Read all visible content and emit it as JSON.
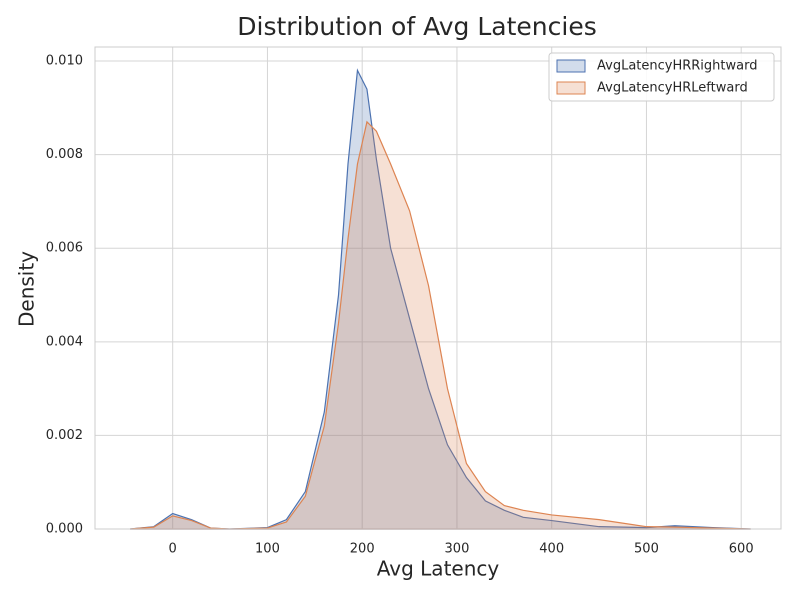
{
  "chart_data": {
    "type": "kde",
    "title": "Distribution of Avg Latencies",
    "xlabel": "Avg Latency",
    "ylabel": "Density",
    "x": [
      -45,
      -20,
      0,
      20,
      40,
      60,
      100,
      120,
      140,
      160,
      175,
      185,
      195,
      205,
      215,
      230,
      250,
      270,
      290,
      310,
      330,
      350,
      370,
      400,
      450,
      500,
      530,
      570,
      610
    ],
    "series": [
      {
        "name": "AvgLatencyHRRightward",
        "color": "#4c72b0",
        "values": [
          0,
          5e-05,
          0.00033,
          0.0002,
          2e-05,
          0,
          3e-05,
          0.0002,
          0.0008,
          0.0025,
          0.005,
          0.0078,
          0.0098,
          0.0094,
          0.0079,
          0.006,
          0.0045,
          0.003,
          0.0018,
          0.0011,
          0.0006,
          0.0004,
          0.00025,
          0.00018,
          5e-05,
          3e-05,
          7e-05,
          3e-05,
          0
        ]
      },
      {
        "name": "AvgLatencyHRLeftward",
        "color": "#dd8452",
        "values": [
          0,
          4e-05,
          0.00028,
          0.00018,
          2e-05,
          0,
          2e-05,
          0.00015,
          0.0007,
          0.0022,
          0.0044,
          0.0062,
          0.0078,
          0.0087,
          0.0085,
          0.0078,
          0.0068,
          0.0052,
          0.003,
          0.0014,
          0.0008,
          0.0005,
          0.0004,
          0.0003,
          0.0002,
          5e-05,
          4e-05,
          2e-05,
          0
        ]
      }
    ],
    "xlim": [
      -82,
      642
    ],
    "ylim": [
      0,
      0.0103
    ],
    "xticks": [
      0,
      100,
      200,
      300,
      400,
      500,
      600
    ],
    "yticks": [
      {
        "value": 0,
        "label": "0.000"
      },
      {
        "value": 0.002,
        "label": "0.002"
      },
      {
        "value": 0.004,
        "label": "0.004"
      },
      {
        "value": 0.006,
        "label": "0.006"
      },
      {
        "value": 0.008,
        "label": "0.008"
      },
      {
        "value": 0.01,
        "label": "0.010"
      }
    ],
    "grid": true,
    "legend": "upper right"
  }
}
